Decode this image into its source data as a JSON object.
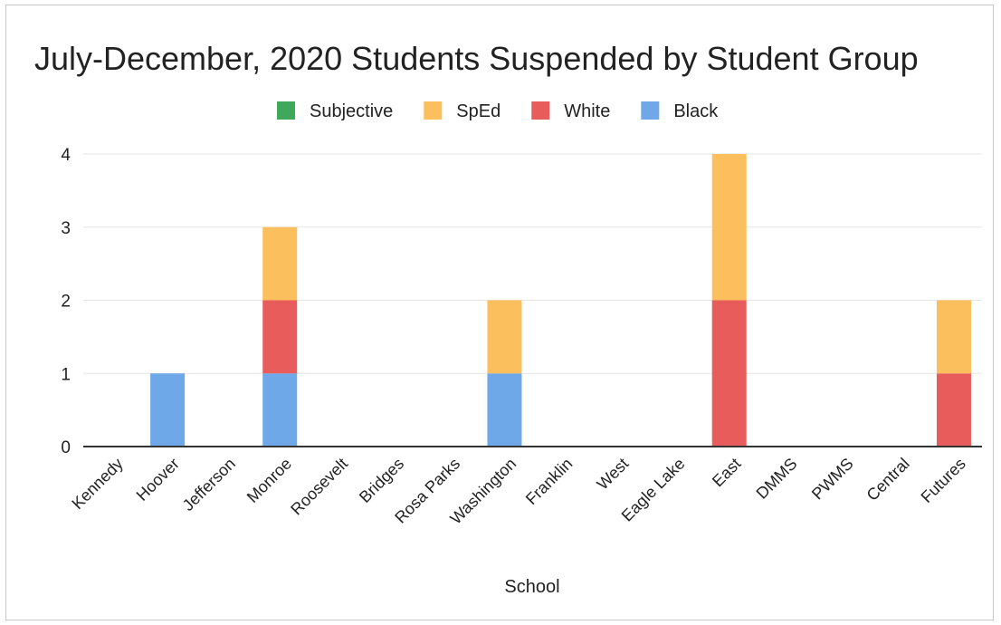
{
  "chart_data": {
    "type": "bar",
    "stacked": true,
    "title": "July-December, 2020 Students Suspended by Student Group",
    "xlabel": "School",
    "ylabel": "",
    "ylim": [
      0,
      4
    ],
    "yticks": [
      "0",
      "1",
      "2",
      "3",
      "4"
    ],
    "grid": true,
    "legend_position": "top",
    "categories": [
      "Kennedy",
      "Hoover",
      "Jefferson",
      "Monroe",
      "Roosevelt",
      "Bridges",
      "Rosa Parks",
      "Washington",
      "Franklin",
      "West",
      "Eagle Lake",
      "East",
      "DMMS",
      "PWMS",
      "Central",
      "Futures"
    ],
    "series": [
      {
        "name": "Black",
        "color": "#6fa8e8",
        "values": [
          0,
          1,
          0,
          1,
          0,
          0,
          0,
          1,
          0,
          0,
          0,
          0,
          0,
          0,
          0,
          0
        ]
      },
      {
        "name": "White",
        "color": "#e85c5c",
        "values": [
          0,
          0,
          0,
          1,
          0,
          0,
          0,
          0,
          0,
          0,
          0,
          2,
          0,
          0,
          0,
          1
        ]
      },
      {
        "name": "SpEd",
        "color": "#fbbf5e",
        "values": [
          0,
          0,
          0,
          1,
          0,
          0,
          0,
          1,
          0,
          0,
          0,
          2,
          0,
          0,
          0,
          1
        ]
      },
      {
        "name": "Subjective",
        "color": "#3fa85a",
        "values": [
          0,
          0,
          0,
          0,
          0,
          0,
          0,
          0,
          0,
          0,
          0,
          0,
          0,
          0,
          0,
          0
        ]
      }
    ],
    "legend_order": [
      "Subjective",
      "SpEd",
      "White",
      "Black"
    ]
  }
}
